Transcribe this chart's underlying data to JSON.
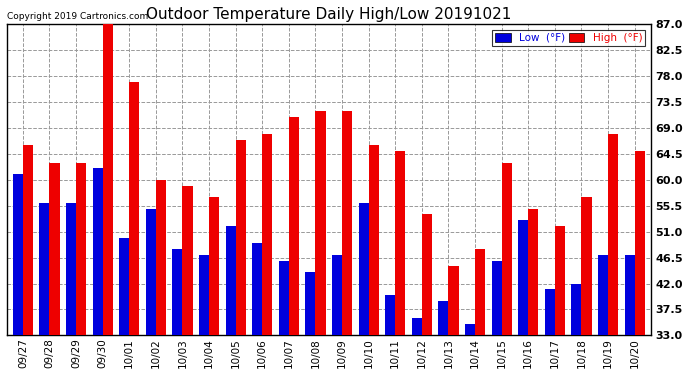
{
  "title": "Outdoor Temperature Daily High/Low 20191021",
  "copyright": "Copyright 2019 Cartronics.com",
  "legend_low_label": "Low  (°F)",
  "legend_high_label": "High  (°F)",
  "low_color": "#0000dd",
  "high_color": "#ee0000",
  "background_color": "#ffffff",
  "grid_color": "#999999",
  "dates": [
    "09/27",
    "09/28",
    "09/29",
    "09/30",
    "10/01",
    "10/02",
    "10/03",
    "10/04",
    "10/05",
    "10/06",
    "10/07",
    "10/08",
    "10/09",
    "10/10",
    "10/11",
    "10/12",
    "10/13",
    "10/14",
    "10/15",
    "10/16",
    "10/17",
    "10/18",
    "10/19",
    "10/20"
  ],
  "high_temps": [
    66,
    63,
    63,
    88,
    77,
    60,
    59,
    57,
    67,
    68,
    71,
    72,
    72,
    66,
    65,
    54,
    45,
    48,
    63,
    55,
    52,
    57,
    68,
    65
  ],
  "low_temps": [
    61,
    56,
    56,
    62,
    50,
    55,
    48,
    47,
    52,
    49,
    46,
    44,
    47,
    56,
    40,
    36,
    39,
    35,
    46,
    53,
    41,
    42,
    47,
    47
  ],
  "ylim": [
    33.0,
    87.0
  ],
  "ymin": 33.0,
  "yticks": [
    33.0,
    37.5,
    42.0,
    46.5,
    51.0,
    55.5,
    60.0,
    64.5,
    69.0,
    73.5,
    78.0,
    82.5,
    87.0
  ],
  "bar_width": 0.38,
  "figsize": [
    6.9,
    3.75
  ],
  "dpi": 100
}
